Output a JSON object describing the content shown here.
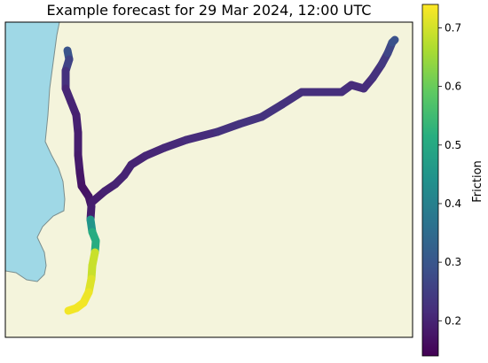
{
  "title": "Example forecast for 29 Mar 2024, 12:00 UTC",
  "colorbar": {
    "label": "Friction",
    "colormap": "viridis",
    "range": [
      0.14,
      0.74
    ],
    "ticks": [
      "0.2",
      "0.3",
      "0.4",
      "0.5",
      "0.6",
      "0.7"
    ],
    "tick_values": [
      0.2,
      0.3,
      0.4,
      0.5,
      0.6,
      0.7
    ]
  },
  "colors": {
    "land": "#f4f4dc",
    "water": "#9fd8e6",
    "border": "#000000",
    "coast": "#7a8e8e"
  }
}
